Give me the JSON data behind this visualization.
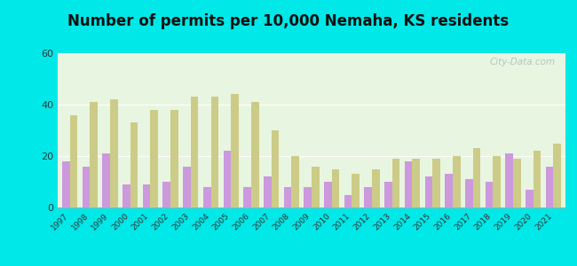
{
  "title": "Number of permits per 10,000 Nemaha, KS residents",
  "years": [
    1997,
    1998,
    1999,
    2000,
    2001,
    2002,
    2003,
    2004,
    2005,
    2006,
    2007,
    2008,
    2009,
    2010,
    2011,
    2012,
    2013,
    2014,
    2015,
    2016,
    2017,
    2018,
    2019,
    2020,
    2021
  ],
  "nemaha": [
    18,
    16,
    21,
    9,
    9,
    10,
    16,
    8,
    22,
    8,
    12,
    8,
    8,
    10,
    5,
    8,
    10,
    18,
    12,
    13,
    11,
    10,
    21,
    7,
    16
  ],
  "kansas": [
    36,
    41,
    42,
    33,
    38,
    38,
    43,
    43,
    44,
    41,
    30,
    20,
    16,
    15,
    13,
    15,
    19,
    19,
    19,
    20,
    23,
    20,
    19,
    22,
    25
  ],
  "nemaha_color": "#cc99dd",
  "kansas_color": "#cccc88",
  "bg_color_outer": "#00e8e8",
  "bg_color_inner": "#e8f5e0",
  "ylim": [
    0,
    60
  ],
  "yticks": [
    0,
    20,
    40,
    60
  ],
  "title_fontsize": 12,
  "watermark": "City-Data.com"
}
